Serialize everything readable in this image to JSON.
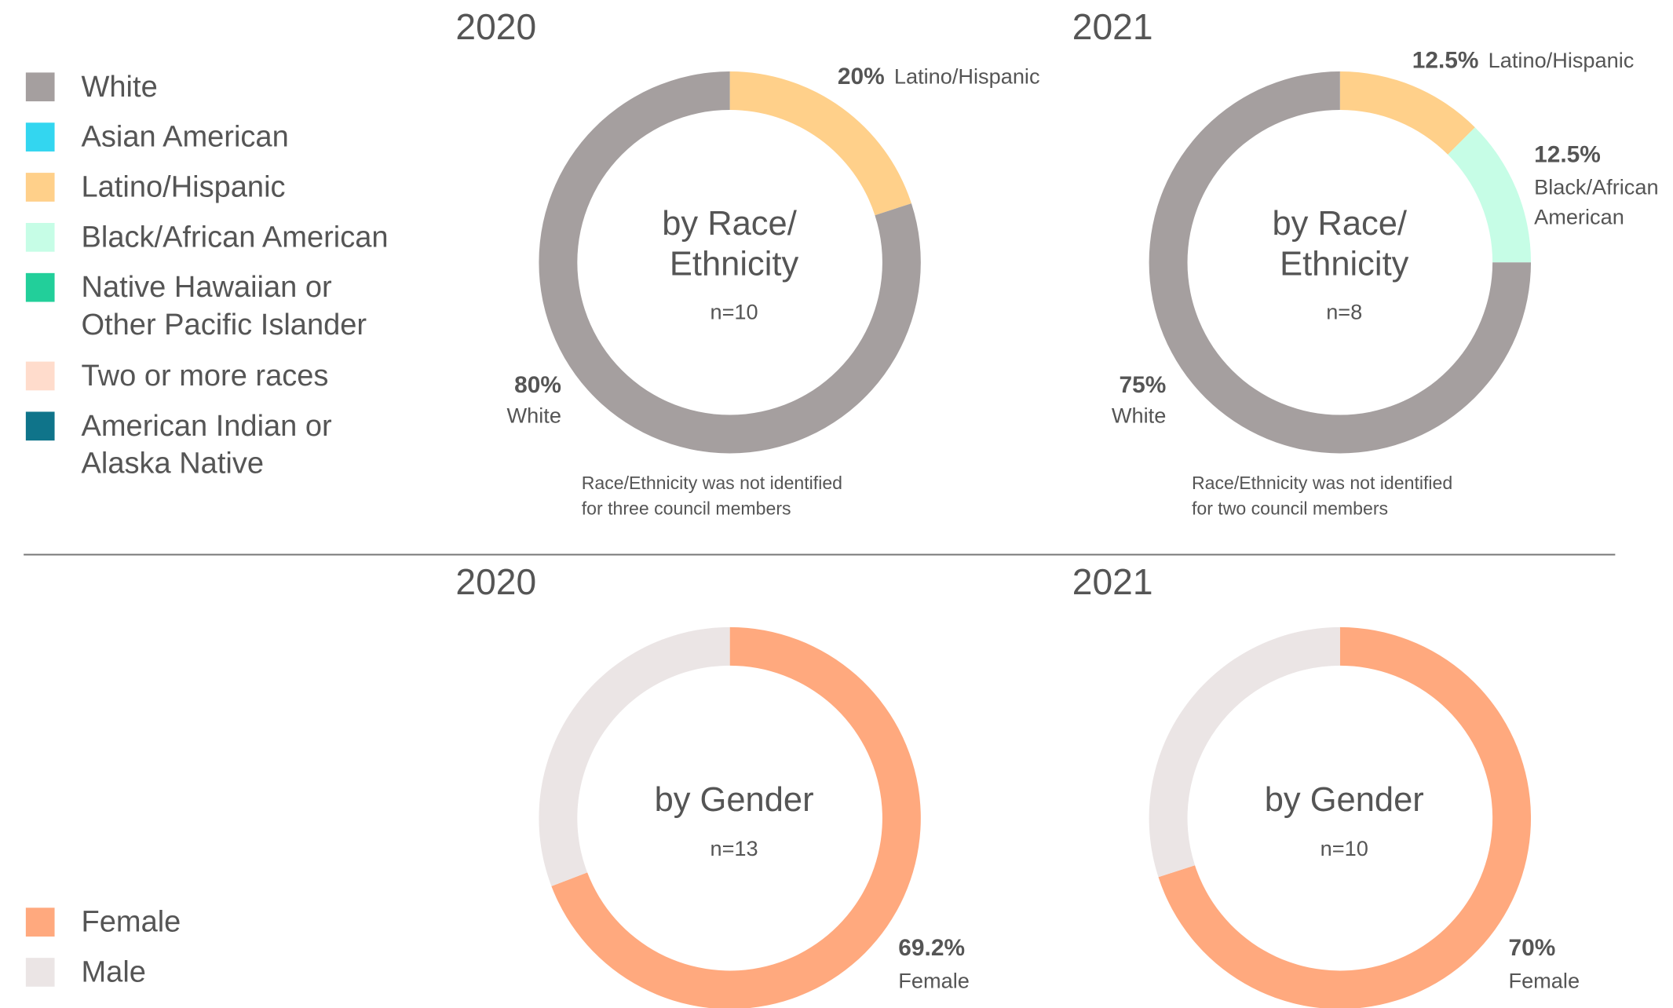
{
  "legends": [
    {
      "items": [
        {
          "name": "White",
          "color": "#a59f9f"
        },
        {
          "name": "Asian American",
          "color": "#33d6f0"
        },
        {
          "name": "Latino/Hispanic",
          "color": "#ffd08a"
        },
        {
          "name": "Black/African American",
          "color": "#c6fde6"
        },
        {
          "name": "Native Hawaiian or Other Pacific Islander",
          "color": "#22cf9a"
        },
        {
          "name": "Two or more races",
          "color": "#ffdccc"
        },
        {
          "name": "American Indian or Alaska Native",
          "color": "#0f748a"
        }
      ]
    },
    {
      "items": [
        {
          "name": "Female",
          "color": "#ffa97e"
        },
        {
          "name": "Male",
          "color": "#ebe5e5"
        }
      ]
    }
  ],
  "chart_data": [
    {
      "type": "donut",
      "title": "2020",
      "center_text": "by Race/ Ethnicity",
      "n_label": "n=10",
      "note": "Race/Ethnicity was not identified for three council members",
      "categories": [
        "Latino/Hispanic",
        "White"
      ],
      "values": [
        20,
        80
      ],
      "value_labels": [
        "20%",
        "80%"
      ],
      "colors": [
        "#ffd08a",
        "#a59f9f"
      ]
    },
    {
      "type": "donut",
      "title": "2021",
      "center_text": "by Race/ Ethnicity",
      "n_label": "n=8",
      "note": "Race/Ethnicity was not identified for two council members",
      "categories": [
        "Latino/Hispanic",
        "Black/African American",
        "White"
      ],
      "values": [
        12.5,
        12.5,
        75
      ],
      "value_labels": [
        "12.5%",
        "12.5%",
        "75%"
      ],
      "colors": [
        "#ffd08a",
        "#c6fde6",
        "#a59f9f"
      ]
    },
    {
      "type": "donut",
      "title": "2020",
      "center_text": "by Gender",
      "n_label": "n=13",
      "categories": [
        "Female",
        null
      ],
      "values": [
        69.2,
        30.8
      ],
      "value_labels": [
        "69.2%",
        null
      ],
      "colors": [
        "#ffa97e",
        "#ebe5e5"
      ]
    },
    {
      "type": "donut",
      "title": "2021",
      "center_text": "by Gender",
      "n_label": "n=10",
      "categories": [
        "Female",
        null
      ],
      "values": [
        70,
        30
      ],
      "value_labels": [
        "70%",
        null
      ],
      "colors": [
        "#ffa97e",
        "#ebe5e5"
      ]
    }
  ]
}
